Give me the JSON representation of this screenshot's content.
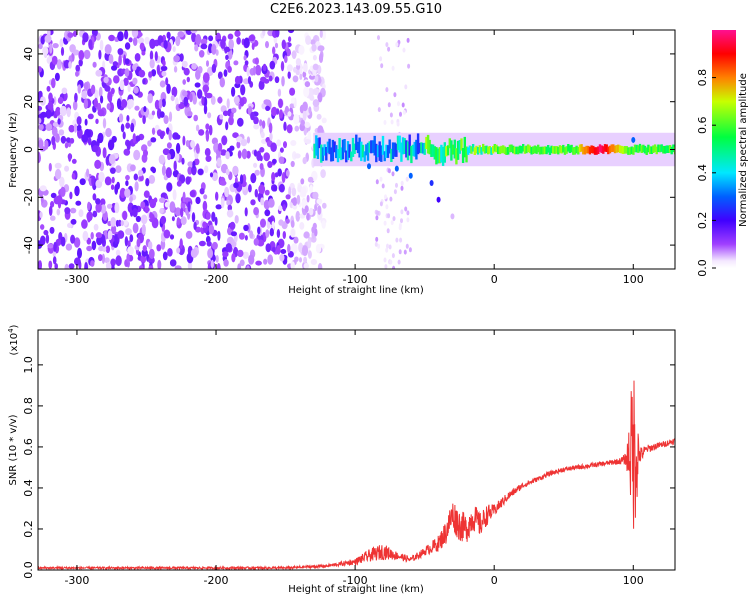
{
  "title": "C2E6.2023.143.09.55.G10",
  "chart_data": [
    {
      "type": "heatmap",
      "xlabel": "Height of straight line (km)",
      "ylabel": "Frequency (Hz)",
      "xlim": [
        -328,
        130
      ],
      "ylim": [
        -50,
        50
      ],
      "xticks": [
        -300,
        -200,
        -100,
        0,
        100
      ],
      "xtick_labels": [
        "-300",
        "-200",
        "-100",
        "0",
        "100"
      ],
      "yticks": [
        -40,
        -20,
        0,
        20,
        40
      ],
      "ytick_labels": [
        "-40",
        "-20",
        "0",
        "20",
        "40"
      ],
      "colorbar": {
        "label": "Normalized spectral amplitude",
        "range": [
          0,
          1
        ],
        "ticks": [
          0.0,
          0.2,
          0.4,
          0.6,
          0.8
        ],
        "tick_labels": [
          "0.0",
          "0.2",
          "0.4",
          "0.6",
          "0.8"
        ],
        "colors": [
          "#ffffff",
          "#8000ff",
          "#0000ff",
          "#00ffff",
          "#00ff00",
          "#ffff00",
          "#ff0000",
          "#ff0080"
        ]
      },
      "features": {
        "noise_region_x": [
          -328,
          -130
        ],
        "noise_amplitude": 0.15,
        "sparse_streak_x": [
          -85,
          -60
        ],
        "signal_band": {
          "x": [
            -130,
            130
          ],
          "freq_center": 0,
          "freq_halfwidth": 4,
          "peak_x": 75,
          "peak_amplitude": 0.95
        }
      }
    },
    {
      "type": "line",
      "xlabel": "Height of straight line (km)",
      "ylabel": "SNR (10 * v/v)",
      "y_multiplier": "(x10",
      "y_multiplier_exp": "4",
      "xlim": [
        -328,
        130
      ],
      "ylim": [
        0,
        1.17
      ],
      "xticks": [
        -300,
        -200,
        -100,
        0,
        100
      ],
      "xtick_labels": [
        "-300",
        "-200",
        "-100",
        "0",
        "100"
      ],
      "yticks": [
        0.0,
        0.2,
        0.4,
        0.6,
        0.8,
        1.0
      ],
      "ytick_labels": [
        "0.0",
        "0.2",
        "0.4",
        "0.6",
        "0.8",
        "1.0"
      ],
      "series": [
        {
          "color": "#ee3333",
          "x": [
            -328,
            -300,
            -250,
            -200,
            -150,
            -120,
            -110,
            -100,
            -90,
            -80,
            -75,
            -70,
            -60,
            -50,
            -40,
            -35,
            -30,
            -25,
            -20,
            -15,
            -10,
            -5,
            0,
            10,
            20,
            30,
            40,
            50,
            60,
            70,
            80,
            90,
            95,
            98,
            100,
            102,
            105,
            110,
            120,
            130
          ],
          "y": [
            0.01,
            0.01,
            0.01,
            0.01,
            0.01,
            0.02,
            0.03,
            0.04,
            0.07,
            0.09,
            0.08,
            0.07,
            0.05,
            0.09,
            0.13,
            0.18,
            0.27,
            0.22,
            0.2,
            0.26,
            0.22,
            0.27,
            0.29,
            0.36,
            0.41,
            0.44,
            0.47,
            0.49,
            0.5,
            0.51,
            0.52,
            0.53,
            0.54,
            0.58,
            0.6,
            0.57,
            0.56,
            0.59,
            0.61,
            0.63
          ],
          "noise": [
            0.005,
            0.005,
            0.005,
            0.005,
            0.006,
            0.008,
            0.01,
            0.015,
            0.03,
            0.04,
            0.03,
            0.02,
            0.015,
            0.02,
            0.04,
            0.06,
            0.08,
            0.08,
            0.07,
            0.07,
            0.06,
            0.05,
            0.03,
            0.02,
            0.015,
            0.012,
            0.012,
            0.012,
            0.012,
            0.012,
            0.012,
            0.015,
            0.03,
            0.25,
            0.45,
            0.3,
            0.04,
            0.02,
            0.015,
            0.015
          ]
        }
      ]
    }
  ]
}
